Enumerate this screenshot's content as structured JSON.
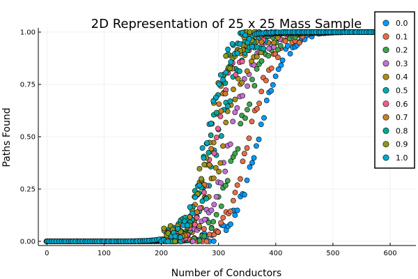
{
  "chart_data": {
    "type": "scatter",
    "title": "2D Representation of 25 x 25 Mass Sample",
    "xlabel": "Number of Conductors",
    "ylabel": "Paths Found",
    "xlim": [
      -15,
      645
    ],
    "ylim": [
      -0.02,
      1.02
    ],
    "xticks": [
      0,
      100,
      200,
      300,
      400,
      500,
      600
    ],
    "yticks": [
      0,
      0.25,
      0.5,
      0.75,
      1.0
    ],
    "xtick_labels": [
      "0",
      "100",
      "200",
      "300",
      "400",
      "500",
      "600"
    ],
    "ytick_labels": [
      "0.00",
      "0.25",
      "0.50",
      "0.75",
      "1.00"
    ],
    "grid": true,
    "legend_position": "top-right",
    "x_range": [
      0,
      600
    ],
    "n_points_per_series": 145,
    "series": [
      {
        "name": "0.0",
        "color": "#009AFA",
        "midpoint": 370,
        "width": 22,
        "jitter": 0.03
      },
      {
        "name": "0.1",
        "color": "#E36F47",
        "midpoint": 354,
        "width": 22,
        "jitter": 0.04
      },
      {
        "name": "0.2",
        "color": "#3EA44E",
        "midpoint": 336,
        "width": 22,
        "jitter": 0.05
      },
      {
        "name": "0.3",
        "color": "#C371D2",
        "midpoint": 323,
        "width": 21,
        "jitter": 0.05
      },
      {
        "name": "0.4",
        "color": "#AC8D18",
        "midpoint": 310,
        "width": 21,
        "jitter": 0.06
      },
      {
        "name": "0.5",
        "color": "#00A9AD",
        "midpoint": 301,
        "width": 20,
        "jitter": 0.06
      },
      {
        "name": "0.6",
        "color": "#ED5E93",
        "midpoint": 295,
        "width": 20,
        "jitter": 0.06
      },
      {
        "name": "0.7",
        "color": "#C68125",
        "midpoint": 290,
        "width": 19,
        "jitter": 0.06
      },
      {
        "name": "0.8",
        "color": "#00A98D",
        "midpoint": 286,
        "width": 19,
        "jitter": 0.06
      },
      {
        "name": "0.9",
        "color": "#8E971D",
        "midpoint": 283,
        "width": 18,
        "jitter": 0.06
      },
      {
        "name": "1.0",
        "color": "#00A8CB",
        "midpoint": 280,
        "width": 18,
        "jitter": 0.06
      }
    ]
  }
}
